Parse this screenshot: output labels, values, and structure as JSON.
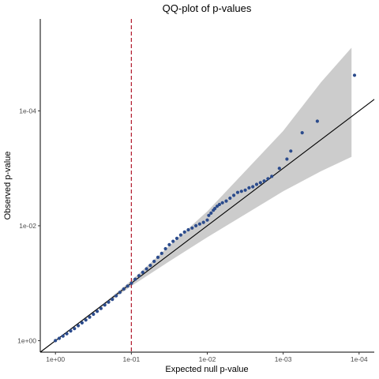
{
  "chart_data": {
    "type": "scatter",
    "title": "QQ-plot of p-values",
    "xlabel": "Expected null p-value",
    "ylabel": "Observed p-value",
    "x_scale": "neg-log10",
    "y_scale": "neg-log10",
    "x_ticks": [
      "1e+00",
      "1e-01",
      "1e-02",
      "1e-03",
      "1e-04"
    ],
    "y_ticks": [
      "1e+00",
      "1e-02",
      "1e-04"
    ],
    "x_tick_values": [
      0,
      1,
      2,
      3,
      4
    ],
    "y_tick_values": [
      0,
      2,
      4
    ],
    "xlim": [
      -0.2,
      4.2
    ],
    "ylim": [
      -0.2,
      5.6
    ],
    "reference_line": {
      "type": "identity",
      "color": "#000000"
    },
    "vline": {
      "x": 1,
      "color": "#b2182b",
      "style": "dashed"
    },
    "confidence_band": {
      "color": "#cccccc",
      "x": [
        0.0,
        0.5,
        1.0,
        1.5,
        2.0,
        2.5,
        3.0,
        3.5,
        3.9
      ],
      "upper": [
        0.0,
        0.5,
        1.05,
        1.65,
        2.25,
        2.95,
        3.65,
        4.5,
        5.1
      ],
      "lower": [
        0.0,
        0.48,
        0.95,
        1.38,
        1.8,
        2.2,
        2.6,
        2.95,
        3.2
      ]
    },
    "series": [
      {
        "color": "#2b4b8c",
        "x": [
          0.0,
          0.05,
          0.1,
          0.15,
          0.2,
          0.25,
          0.3,
          0.35,
          0.4,
          0.45,
          0.5,
          0.55,
          0.6,
          0.65,
          0.7,
          0.75,
          0.8,
          0.85,
          0.9,
          0.95,
          1.0,
          1.05,
          1.1,
          1.15,
          1.2,
          1.25,
          1.3,
          1.35,
          1.4,
          1.45,
          1.5,
          1.55,
          1.6,
          1.65,
          1.7,
          1.75,
          1.8,
          1.85,
          1.9,
          1.95,
          2.0,
          2.02,
          2.05,
          2.08,
          2.1,
          2.13,
          2.16,
          2.2,
          2.25,
          2.3,
          2.35,
          2.4,
          2.45,
          2.5,
          2.55,
          2.6,
          2.65,
          2.7,
          2.75,
          2.8,
          2.85,
          2.95,
          3.05,
          3.1,
          3.25,
          3.45,
          3.94
        ],
        "y": [
          0.0,
          0.04,
          0.08,
          0.12,
          0.17,
          0.21,
          0.26,
          0.31,
          0.36,
          0.41,
          0.46,
          0.51,
          0.56,
          0.62,
          0.67,
          0.72,
          0.78,
          0.84,
          0.9,
          0.95,
          1.0,
          1.07,
          1.13,
          1.19,
          1.25,
          1.31,
          1.38,
          1.45,
          1.52,
          1.6,
          1.67,
          1.73,
          1.78,
          1.84,
          1.89,
          1.93,
          1.96,
          2.0,
          2.03,
          2.06,
          2.1,
          2.18,
          2.22,
          2.27,
          2.3,
          2.34,
          2.37,
          2.4,
          2.43,
          2.48,
          2.53,
          2.58,
          2.6,
          2.62,
          2.66,
          2.68,
          2.72,
          2.75,
          2.78,
          2.82,
          2.86,
          3.0,
          3.16,
          3.3,
          3.62,
          3.82,
          4.62
        ]
      }
    ]
  }
}
